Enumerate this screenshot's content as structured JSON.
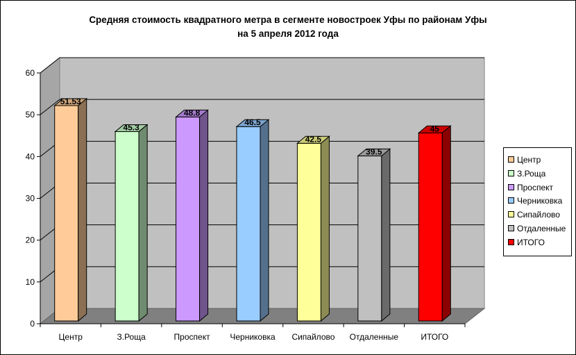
{
  "chart_data": {
    "type": "bar",
    "title": [
      "Средняя стоимость квадратного метра в сегменте новостроек Уфы по районам Уфы",
      "на 5 апреля 2012 года"
    ],
    "categories": [
      "Центр",
      "З.Роща",
      "Проспект",
      "Черниковка",
      "Сипайлово",
      "Отдаленные",
      "ИТОГО"
    ],
    "values": [
      51.53,
      45.3,
      48.8,
      46.5,
      42.5,
      39.5,
      45
    ],
    "value_labels": [
      "51.53",
      "45.3",
      "48.8",
      "46.5",
      "42.5",
      "39.5",
      "45"
    ],
    "colors": [
      "#ffcc99",
      "#ccffcc",
      "#cc99ff",
      "#99ccff",
      "#ffff99",
      "#c0c0c0",
      "#ff0000"
    ],
    "ylim": [
      0,
      60
    ],
    "yticks": [
      0,
      10,
      20,
      30,
      40,
      50,
      60
    ],
    "grid": true,
    "projection": "3d",
    "legend": {
      "placement": "right",
      "entries": [
        "Центр",
        "З.Роща",
        "Проспект",
        "Черниковка",
        "Сипайлово",
        "Отдаленные",
        "ИТОГО"
      ]
    },
    "wall_color": "#c0c0c0"
  }
}
